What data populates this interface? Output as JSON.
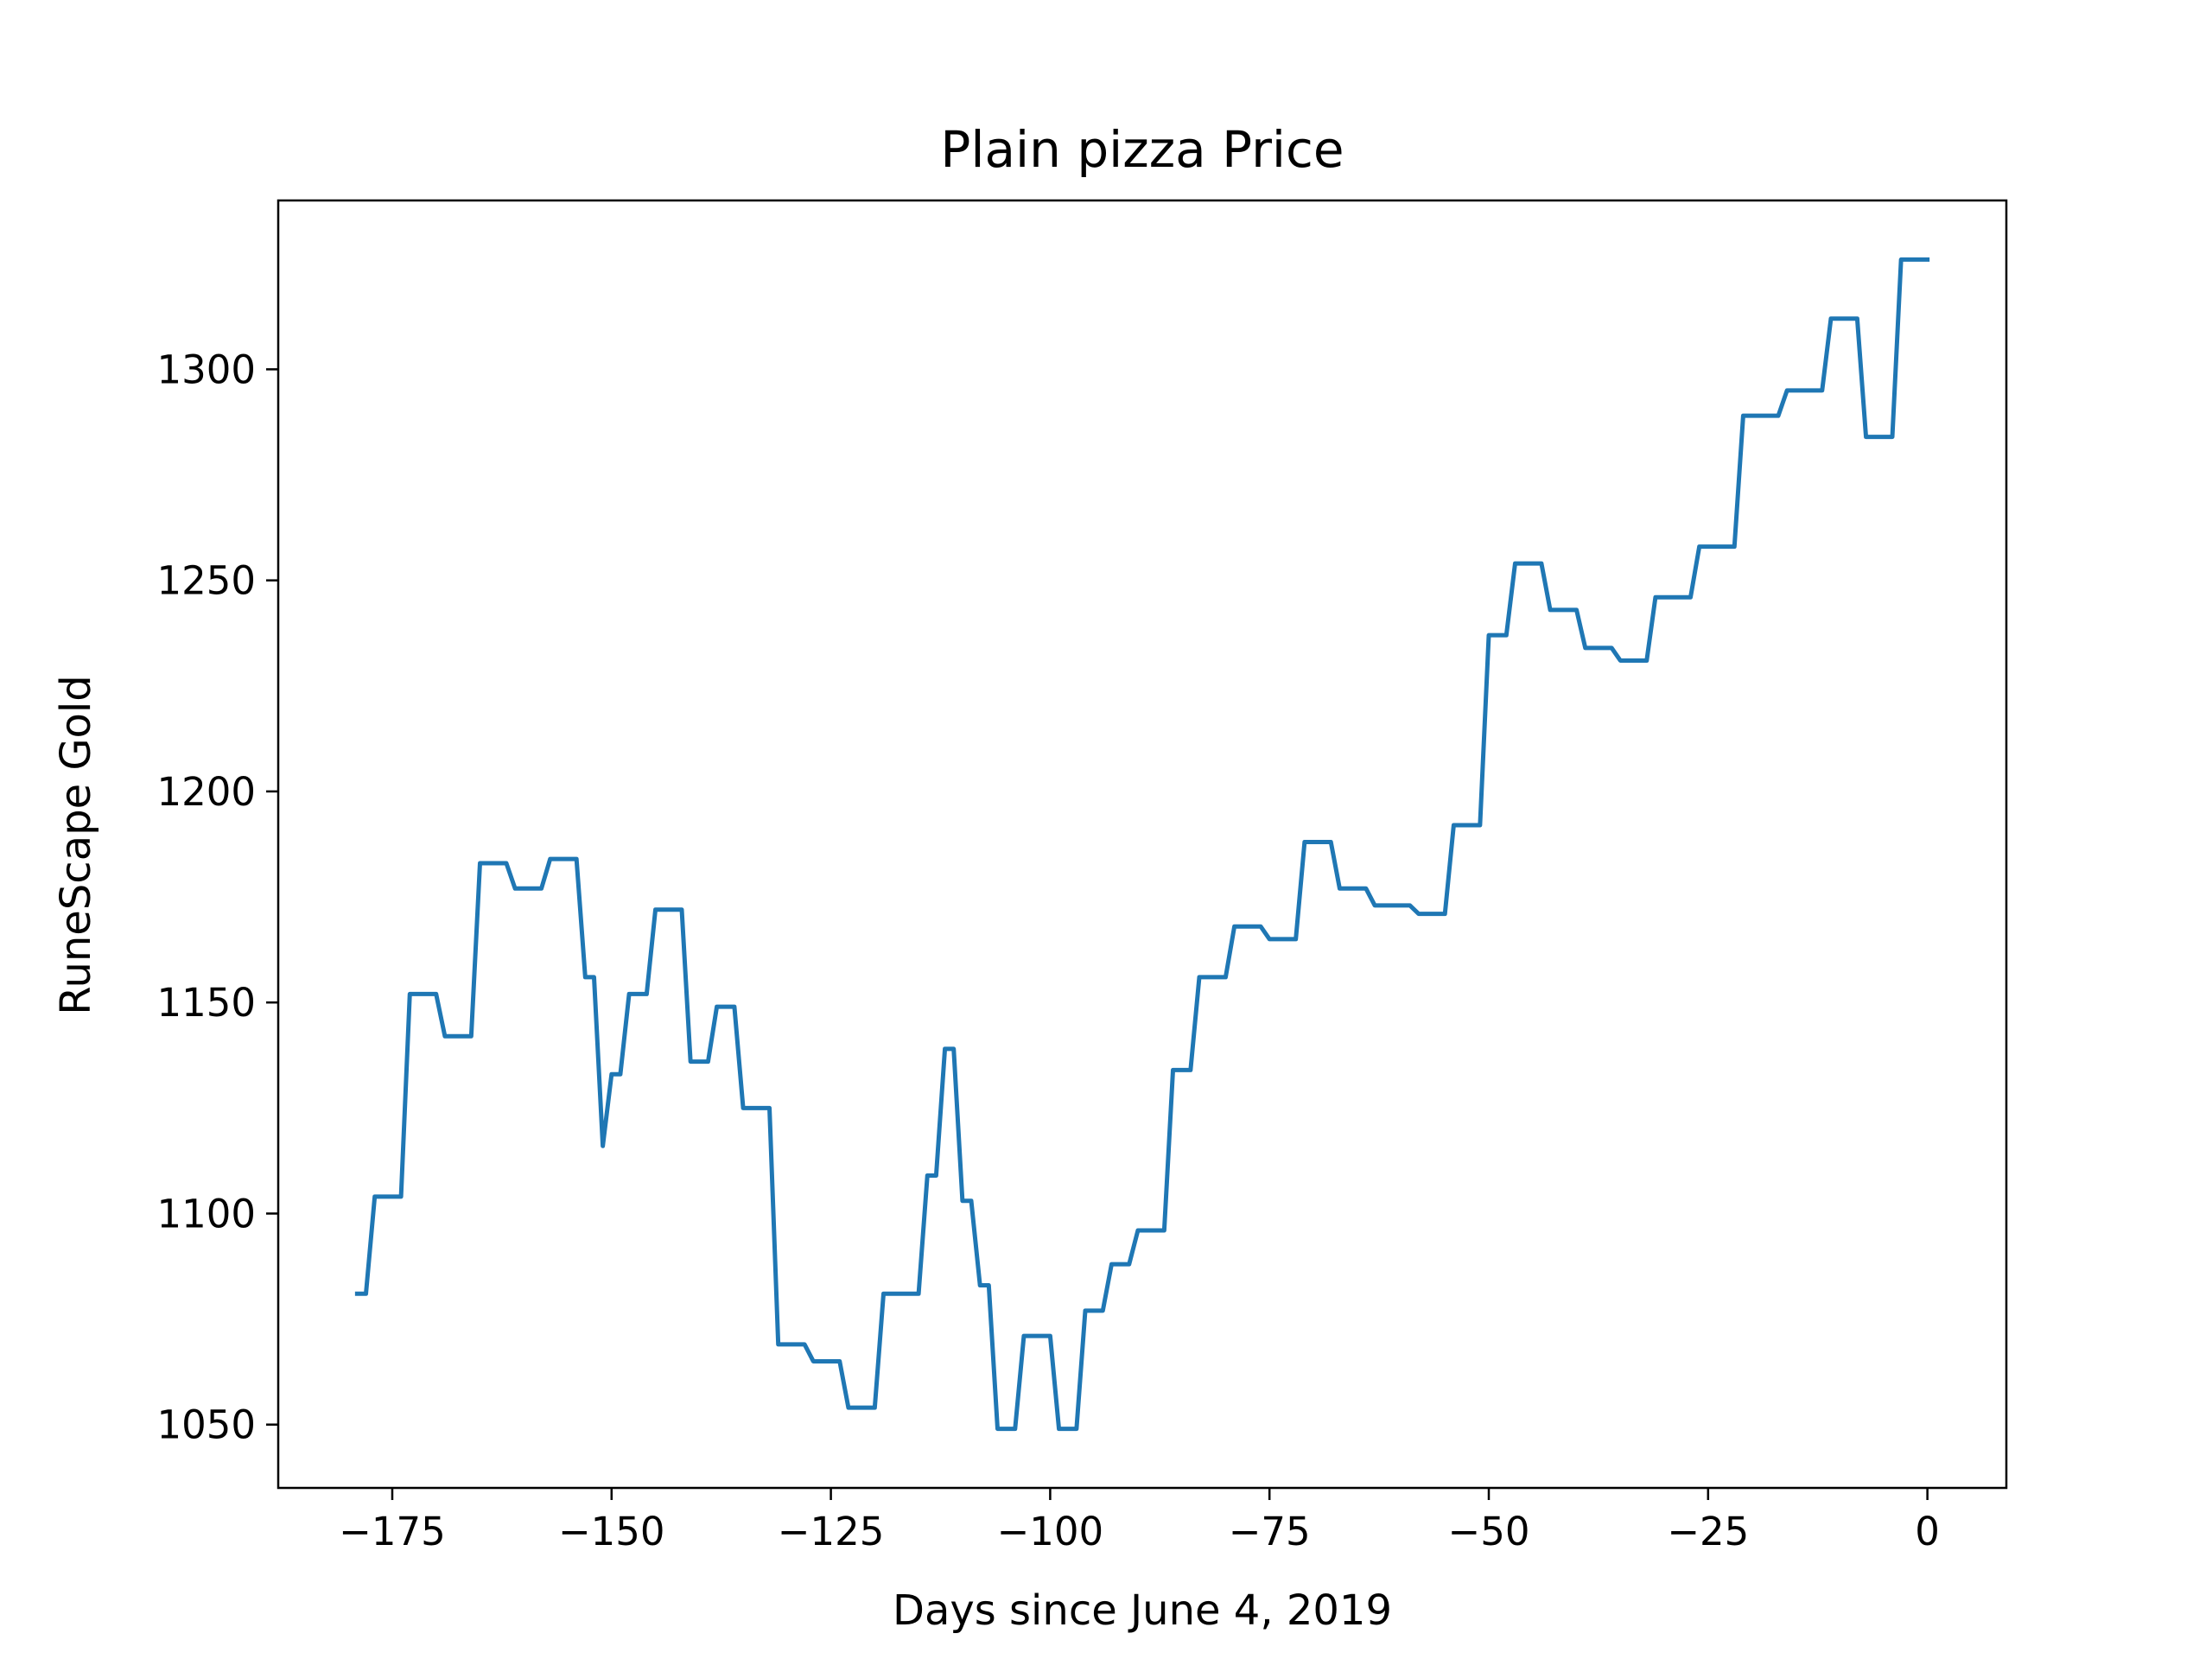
{
  "chart_data": {
    "type": "line",
    "title": "Plain pizza Price",
    "xlabel": "Days since June 4, 2019",
    "ylabel": "RuneScape Gold",
    "xlim": [
      -188,
      9
    ],
    "ylim": [
      1035,
      1340
    ],
    "xticks": [
      -175,
      -150,
      -125,
      -100,
      -75,
      -50,
      -25,
      0
    ],
    "xtick_labels": [
      "−175",
      "−150",
      "−125",
      "−100",
      "−75",
      "−50",
      "−25",
      "0"
    ],
    "yticks": [
      1050,
      1100,
      1150,
      1200,
      1250,
      1300
    ],
    "ytick_labels": [
      "1050",
      "1100",
      "1150",
      "1200",
      "1250",
      "1300"
    ],
    "grid": false,
    "line_color": "#1f77b4",
    "series": [
      {
        "x": [
          -179,
          -178,
          -177,
          -176,
          -175,
          -174,
          -173,
          -172,
          -171,
          -170,
          -169,
          -168,
          -167,
          -166,
          -165,
          -164,
          -163,
          -162,
          -161,
          -160,
          -159,
          -158,
          -157,
          -156,
          -155,
          -154,
          -153,
          -152,
          -151,
          -150,
          -149,
          -148,
          -147,
          -146,
          -145,
          -144,
          -143,
          -142,
          -141,
          -140,
          -139,
          -138,
          -137,
          -136,
          -135,
          -134,
          -133,
          -132,
          -131,
          -130,
          -129,
          -128,
          -127,
          -126,
          -125,
          -124,
          -123,
          -122,
          -121,
          -120,
          -119,
          -118,
          -117,
          -116,
          -115,
          -114,
          -113,
          -112,
          -111,
          -110,
          -109,
          -108,
          -107,
          -106,
          -105,
          -104,
          -103,
          -102,
          -101,
          -100,
          -99,
          -98,
          -97,
          -96,
          -95,
          -94,
          -93,
          -92,
          -91,
          -90,
          -89,
          -88,
          -87,
          -86,
          -85,
          -84,
          -83,
          -82,
          -81,
          -80,
          -79,
          -78,
          -77,
          -76,
          -75,
          -74,
          -73,
          -72,
          -71,
          -70,
          -69,
          -68,
          -67,
          -66,
          -65,
          -64,
          -63,
          -62,
          -61,
          -60,
          -59,
          -58,
          -57,
          -56,
          -55,
          -54,
          -53,
          -52,
          -51,
          -50,
          -49,
          -48,
          -47,
          -46,
          -45,
          -44,
          -43,
          -42,
          -41,
          -40,
          -39,
          -38,
          -37,
          -36,
          -35,
          -34,
          -33,
          -32,
          -31,
          -30,
          -29,
          -28,
          -27,
          -26,
          -25,
          -24,
          -23,
          -22,
          -21,
          -20,
          -19,
          -18,
          -17,
          -16,
          -15,
          -14,
          -13,
          -12,
          -11,
          -10,
          -9,
          -8,
          -7,
          -6,
          -5,
          -4,
          -3,
          -2,
          -1,
          0
        ],
        "y": [
          1081,
          1081,
          1104,
          1104,
          1104,
          1104,
          1152,
          1152,
          1152,
          1152,
          1142,
          1142,
          1142,
          1142,
          1183,
          1183,
          1183,
          1183,
          1177,
          1177,
          1177,
          1177,
          1184,
          1184,
          1184,
          1184,
          1156,
          1156,
          1116,
          1133,
          1133,
          1152,
          1152,
          1152,
          1172,
          1172,
          1172,
          1172,
          1136,
          1136,
          1136,
          1149,
          1149,
          1149,
          1125,
          1125,
          1125,
          1125,
          1069,
          1069,
          1069,
          1069,
          1065,
          1065,
          1065,
          1065,
          1054,
          1054,
          1054,
          1054,
          1081,
          1081,
          1081,
          1081,
          1081,
          1109,
          1109,
          1139,
          1139,
          1103,
          1103,
          1083,
          1083,
          1049,
          1049,
          1049,
          1071,
          1071,
          1071,
          1071,
          1049,
          1049,
          1049,
          1077,
          1077,
          1077,
          1088,
          1088,
          1088,
          1096,
          1096,
          1096,
          1096,
          1134,
          1134,
          1134,
          1156,
          1156,
          1156,
          1156,
          1168,
          1168,
          1168,
          1168,
          1165,
          1165,
          1165,
          1165,
          1188,
          1188,
          1188,
          1188,
          1177,
          1177,
          1177,
          1177,
          1173,
          1173,
          1173,
          1173,
          1173,
          1171,
          1171,
          1171,
          1171,
          1192,
          1192,
          1192,
          1192,
          1237,
          1237,
          1237,
          1254,
          1254,
          1254,
          1254,
          1243,
          1243,
          1243,
          1243,
          1234,
          1234,
          1234,
          1234,
          1231,
          1231,
          1231,
          1231,
          1246,
          1246,
          1246,
          1246,
          1246,
          1258,
          1258,
          1258,
          1258,
          1258,
          1289,
          1289,
          1289,
          1289,
          1289,
          1295,
          1295,
          1295,
          1295,
          1295,
          1312,
          1312,
          1312,
          1312,
          1284,
          1284,
          1284,
          1284,
          1326,
          1326,
          1326,
          1326
        ]
      }
    ]
  }
}
